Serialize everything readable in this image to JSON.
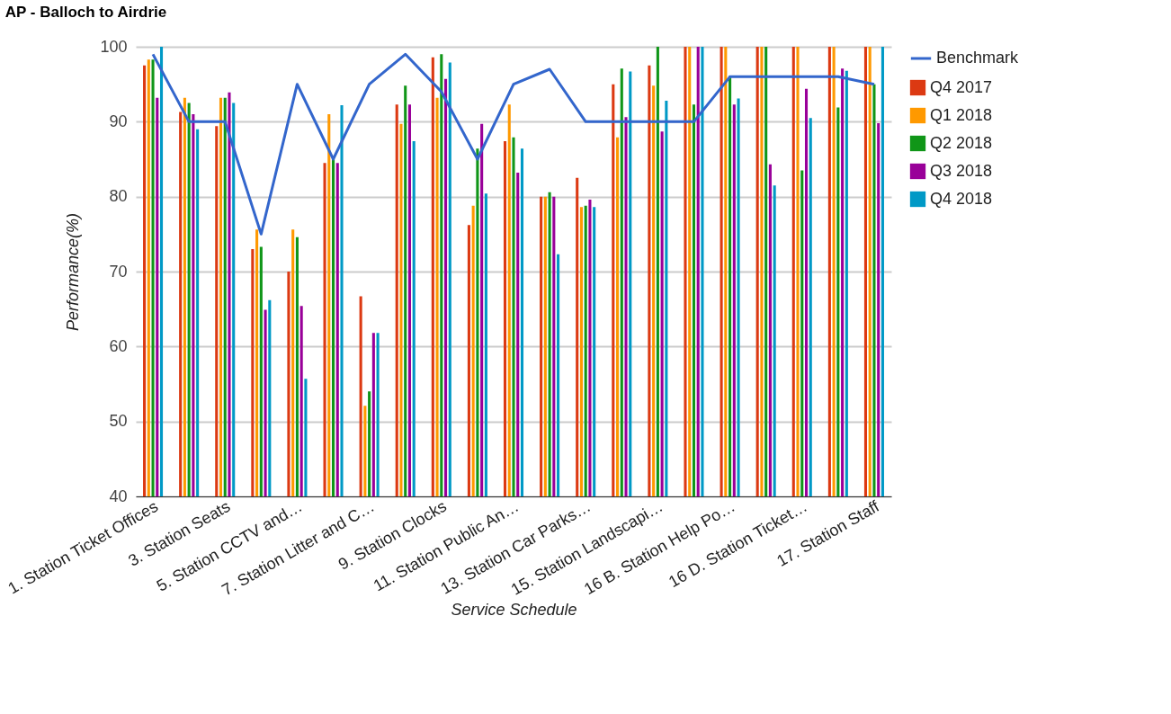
{
  "chart_data": {
    "type": "bar",
    "title": "AP - Balloch to Airdrie",
    "xlabel": "Service Schedule",
    "ylabel": "Performance(%)",
    "categories": [
      "1. Station Ticket Offices",
      null,
      "3. Station Seats",
      null,
      "5. Station CCTV and…",
      null,
      "7. Station Litter and C…",
      null,
      "9. Station Clocks",
      null,
      "11. Station Public An…",
      null,
      "13. Station Car Parks…",
      null,
      "15. Station Landscapi…",
      null,
      "16 B. Station Help Po…",
      null,
      "16 D. Station Ticket…",
      null,
      "17. Station Staff"
    ],
    "series": [
      {
        "name": "Benchmark",
        "type": "line",
        "color": "#3366cc",
        "values": [
          99,
          90,
          90,
          75,
          95,
          85,
          95,
          99,
          94,
          85,
          95,
          97,
          90,
          90,
          90,
          90,
          96,
          96,
          96,
          96,
          95
        ]
      },
      {
        "name": "Q4 2017",
        "color": "#dc3912",
        "values": [
          97.5,
          91.3,
          89.4,
          73.0,
          70.0,
          84.5,
          66.7,
          92.3,
          98.6,
          76.2,
          87.4,
          80.0,
          82.5,
          95.0,
          97.5,
          100,
          100,
          100,
          100,
          100,
          100
        ]
      },
      {
        "name": "Q1 2018",
        "color": "#ff9900",
        "values": [
          98.3,
          93.2,
          93.2,
          75.6,
          75.6,
          91.0,
          52.1,
          89.7,
          93.2,
          78.8,
          92.3,
          80.0,
          78.6,
          87.9,
          94.8,
          100,
          100,
          100,
          100,
          100,
          100
        ]
      },
      {
        "name": "Q2 2018",
        "color": "#109618",
        "values": [
          98.3,
          92.5,
          93.2,
          73.3,
          74.6,
          85.0,
          54.0,
          94.8,
          99.0,
          86.4,
          87.9,
          80.6,
          78.8,
          97.1,
          100,
          92.3,
          96.1,
          100,
          83.5,
          91.9,
          95.0
        ]
      },
      {
        "name": "Q3 2018",
        "color": "#990099",
        "values": [
          93.2,
          91.0,
          93.9,
          64.9,
          65.4,
          84.5,
          61.8,
          92.3,
          95.7,
          89.7,
          83.2,
          80.0,
          79.6,
          90.6,
          88.7,
          100,
          92.3,
          84.3,
          94.4,
          97.1,
          89.8
        ]
      },
      {
        "name": "Q4 2018",
        "color": "#0099c6",
        "values": [
          100,
          89.0,
          92.5,
          66.2,
          55.7,
          92.2,
          61.8,
          87.4,
          97.9,
          80.4,
          86.4,
          72.3,
          78.6,
          96.7,
          92.8,
          100,
          93.1,
          81.5,
          90.5,
          96.8,
          100
        ]
      }
    ],
    "ylim": [
      40,
      100
    ],
    "yticks": [
      40,
      50,
      60,
      70,
      80,
      90,
      100
    ],
    "grid": "y",
    "legend": "right",
    "marker": "none",
    "line_style": "solid"
  }
}
